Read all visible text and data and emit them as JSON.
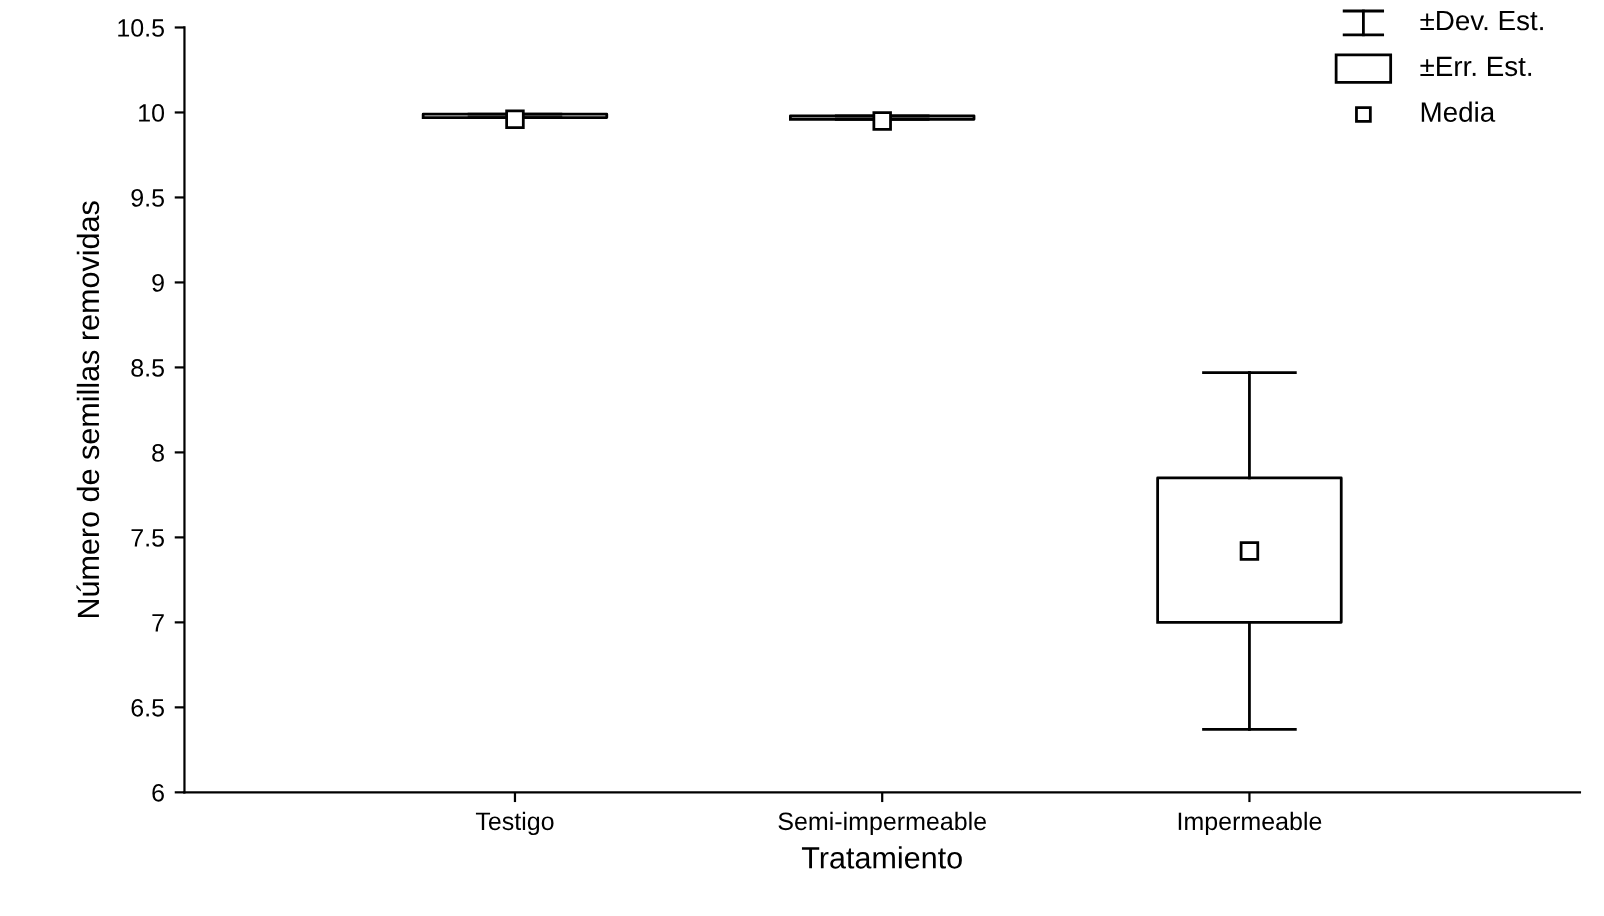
{
  "chart_data": {
    "type": "box",
    "xlabel": "Tratamiento",
    "ylabel": "Número de semillas removidas",
    "categories": [
      "Testigo",
      "Semi-impermeable",
      "Impermeable"
    ],
    "boxes": [
      {
        "low": 9.97,
        "q1": 9.97,
        "q3": 9.99,
        "high": 9.99,
        "mean": 9.96
      },
      {
        "low": 9.96,
        "q1": 9.96,
        "q3": 9.98,
        "high": 9.98,
        "mean": 9.95
      },
      {
        "low": 6.37,
        "q1": 7.0,
        "q3": 7.85,
        "high": 8.47,
        "mean": 7.42
      }
    ],
    "annotations": [
      "±Dev. Est.",
      "±Err. Est.",
      "Media"
    ],
    "ylim": [
      6,
      10.5
    ],
    "yticks": [
      6,
      6.5,
      7,
      7.5,
      8,
      8.5,
      9,
      9.5,
      10,
      10.5
    ],
    "grid": false,
    "marker": "square"
  }
}
